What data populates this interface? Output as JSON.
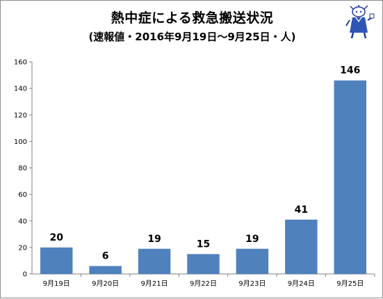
{
  "title": "熱中症による救急搬送状況",
  "subtitle": "(速報値・2016年9月19日～9月25日・人)",
  "mascot_icon": "mascot-character-icon",
  "chart_data": {
    "type": "bar",
    "title": "熱中症による救急搬送状況",
    "subtitle": "(速報値・2016年9月19日～9月25日・人)",
    "categories": [
      "9月19日",
      "9月20日",
      "9月21日",
      "9月22日",
      "9月23日",
      "9月24日",
      "9月25日"
    ],
    "values": [
      20,
      6,
      19,
      15,
      19,
      41,
      146
    ],
    "data_labels": [
      "20",
      "6",
      "19",
      "15",
      "19",
      "41",
      "146"
    ],
    "ylim": [
      0,
      160
    ],
    "yticks": [
      0,
      20,
      40,
      60,
      80,
      100,
      120,
      140,
      160
    ],
    "ytick_labels": [
      "0",
      "20",
      "40",
      "60",
      "80",
      "100",
      "120",
      "140",
      "160"
    ],
    "xlabel": "",
    "ylabel": "",
    "grid": false,
    "legend": "none",
    "bar_color": "#4f81bd"
  }
}
